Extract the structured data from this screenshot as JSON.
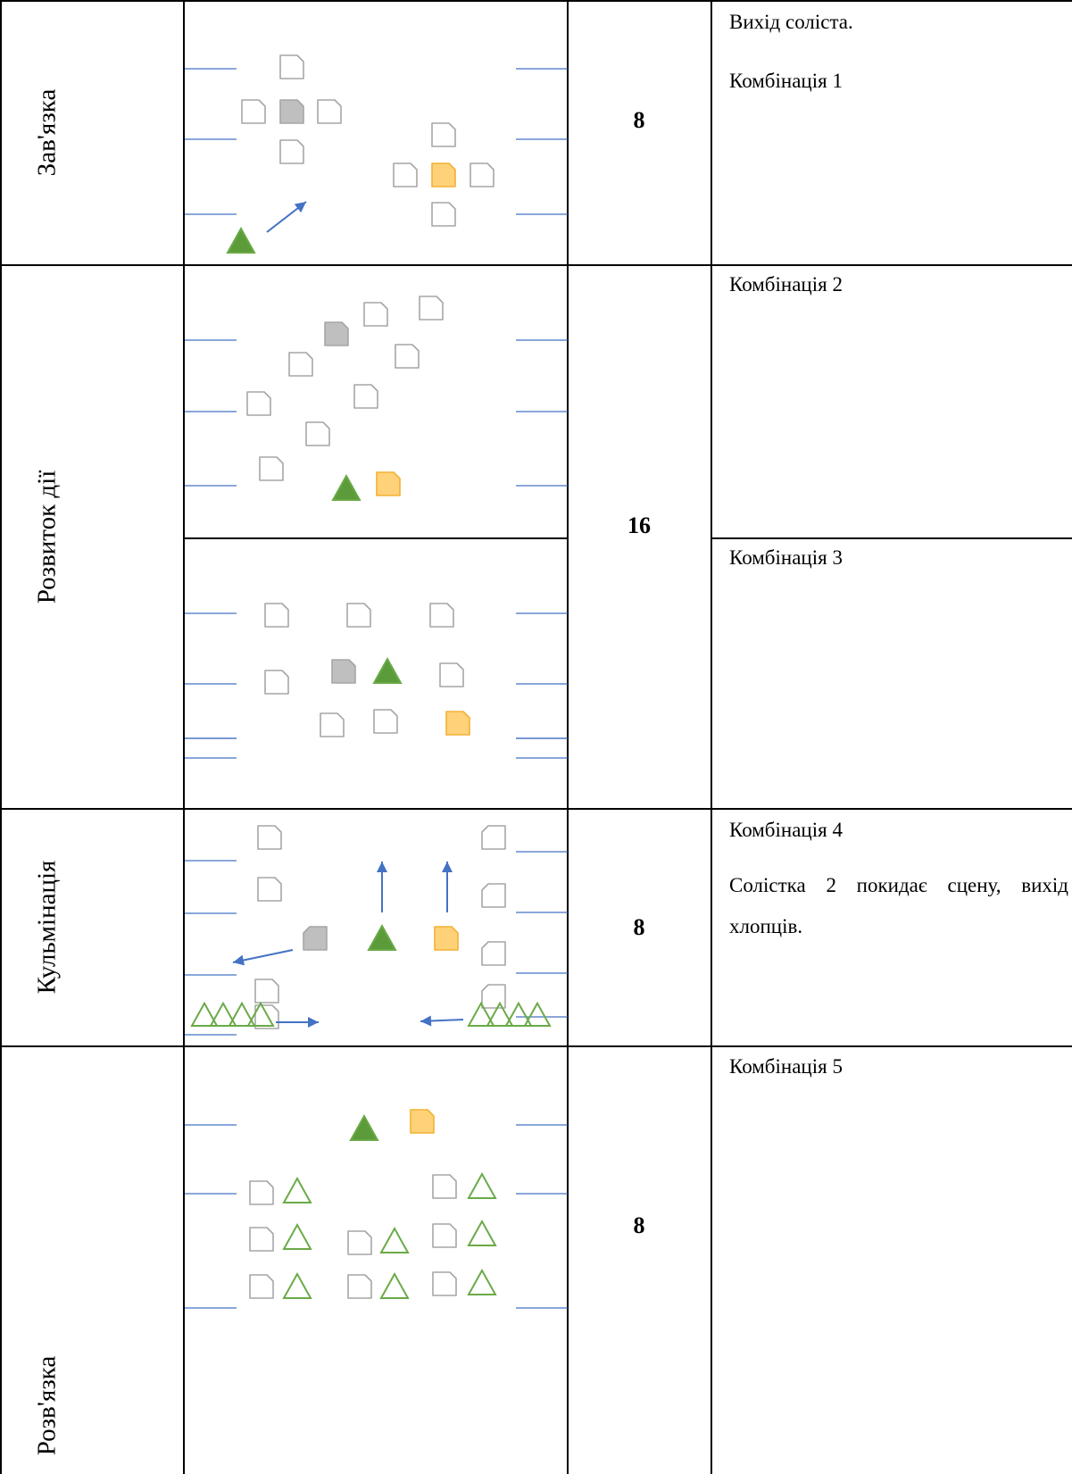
{
  "rows": [
    {
      "stage": "Зав'язка",
      "count": "8",
      "notes": [
        "Вихід соліста.",
        "Комбінація 1"
      ]
    },
    {
      "stage": "Розвиток дії",
      "count": "16",
      "notes_a": [
        "Комбінація 2"
      ],
      "notes_b": [
        "Комбінація 3"
      ]
    },
    {
      "stage": "Кульмінація",
      "count": "8",
      "notes": [
        "Комбінація 4",
        "Солістка 2 покидає сцену, вихід хлопців."
      ]
    },
    {
      "stage": "Розв'язка",
      "count": "8",
      "notes": [
        "Комбінація 5"
      ]
    }
  ],
  "colors": {
    "border": "#000000",
    "stage_line": "#4472c4",
    "dancer_outline": "#a6a6a6",
    "soloist_grey": "#bfbfbf",
    "soloist_orange": "#ffd27a",
    "soloist_orange_outline": "#f2b134",
    "male_fill": "#5b9b3a",
    "male_outline": "#6aaa47",
    "arrow": "#4472c4"
  },
  "icons": {
    "female_dancer": "rounded-square-icon",
    "male_dancer": "triangle-icon",
    "movement": "arrow-icon"
  }
}
